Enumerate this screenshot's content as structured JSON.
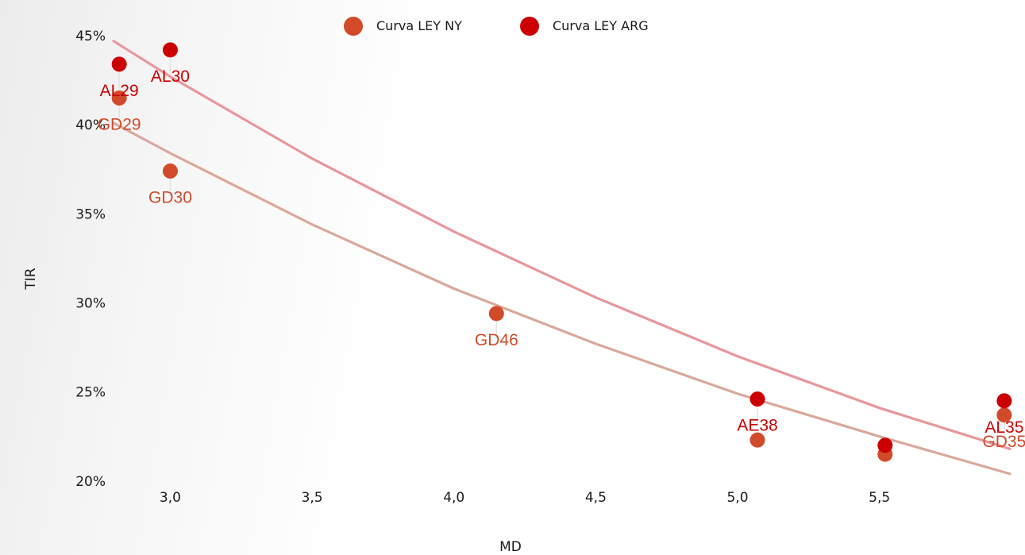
{
  "chart_data": {
    "type": "scatter",
    "xlabel": "MD",
    "ylabel": "TIR",
    "xlim": [
      2.8,
      5.96
    ],
    "ylim": [
      0.195,
      0.462
    ],
    "x_ticks": [
      3.0,
      3.5,
      4.0,
      4.5,
      5.0,
      5.5
    ],
    "x_tick_labels": [
      "3,0",
      "3,5",
      "4,0",
      "4,5",
      "5,0",
      "5,5"
    ],
    "y_ticks": [
      0.2,
      0.25,
      0.3,
      0.35,
      0.4,
      0.45
    ],
    "y_tick_labels": [
      "20%",
      "25%",
      "30%",
      "35%",
      "40%",
      "45%"
    ],
    "grid": false,
    "legend_position": "top-center",
    "series": [
      {
        "name": "Curva LEY NY",
        "color": "#d14a2a",
        "trend_color": "#d9a99b",
        "points": [
          {
            "label": "GD29",
            "x": 2.82,
            "y": 0.415
          },
          {
            "label": "GD30",
            "x": 3.0,
            "y": 0.374
          },
          {
            "label": "GD46",
            "x": 4.15,
            "y": 0.294
          },
          {
            "label": "",
            "x": 5.07,
            "y": 0.223
          },
          {
            "label": "",
            "x": 5.52,
            "y": 0.215
          },
          {
            "label": "GD35",
            "x": 5.94,
            "y": 0.237
          }
        ],
        "trendline": {
          "x": [
            2.8,
            3.0,
            3.5,
            4.0,
            4.5,
            5.0,
            5.5,
            5.96
          ],
          "y": [
            0.401,
            0.384,
            0.344,
            0.308,
            0.277,
            0.249,
            0.225,
            0.204
          ]
        }
      },
      {
        "name": "Curva LEY ARG",
        "color": "#cc0000",
        "trend_color": "#e8979b",
        "points": [
          {
            "label": "AL29",
            "x": 2.82,
            "y": 0.434
          },
          {
            "label": "AL30",
            "x": 3.0,
            "y": 0.442
          },
          {
            "label": "AE38",
            "x": 5.07,
            "y": 0.246
          },
          {
            "label": "",
            "x": 5.52,
            "y": 0.22
          },
          {
            "label": "AL35",
            "x": 5.94,
            "y": 0.245
          }
        ],
        "trendline": {
          "x": [
            2.8,
            3.0,
            3.5,
            4.0,
            4.5,
            5.0,
            5.5,
            5.96
          ],
          "y": [
            0.447,
            0.427,
            0.381,
            0.34,
            0.303,
            0.27,
            0.241,
            0.218
          ]
        }
      }
    ]
  }
}
